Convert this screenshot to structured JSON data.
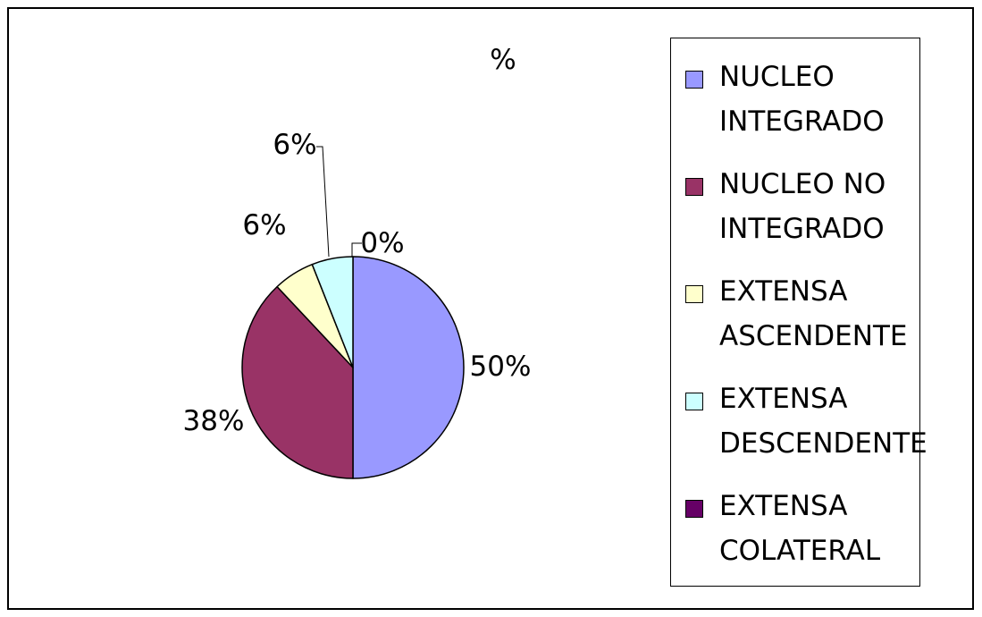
{
  "chart_data": {
    "type": "pie",
    "title": "%",
    "categories": [
      "NUCLEO INTEGRADO",
      "NUCLEO NO INTEGRADO",
      "EXTENSA ASCENDENTE",
      "EXTENSA DESCENDENTE",
      "EXTENSA COLATERAL"
    ],
    "values": [
      50,
      38,
      6,
      6,
      0
    ],
    "data_labels": [
      "50%",
      "38%",
      "6%",
      "6%",
      "0%"
    ],
    "colors": [
      "#9999ff",
      "#993366",
      "#ffffcc",
      "#ccffff",
      "#660066"
    ],
    "legend_position": "right",
    "grid": false
  }
}
